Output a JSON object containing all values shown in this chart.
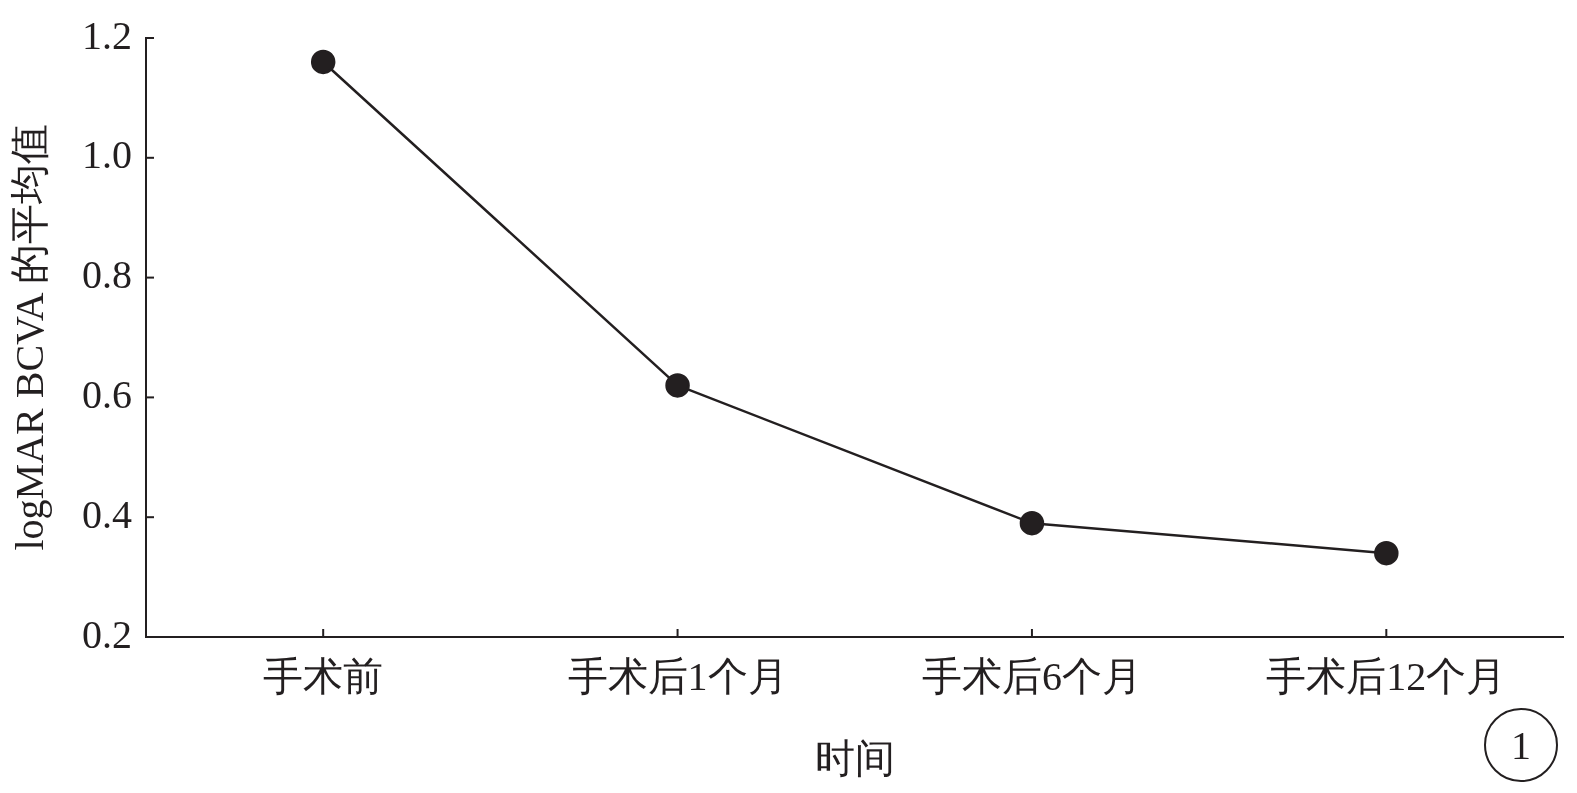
{
  "chart_data": {
    "type": "line",
    "xlabel": "时间",
    "ylabel": "logMAR BCVA 的平均值",
    "categories": [
      "手术前",
      "手术后1个月",
      "手术后6个月",
      "手术后12个月"
    ],
    "series": [
      {
        "color": "#231f20",
        "values": [
          1.16,
          0.62,
          0.39,
          0.34
        ]
      }
    ],
    "ylim": [
      0.2,
      1.2
    ],
    "yticks": [
      {
        "value": 0.2,
        "label": "0.2"
      },
      {
        "value": 0.4,
        "label": "0.4"
      },
      {
        "value": 0.6,
        "label": "0.6"
      },
      {
        "value": 0.8,
        "label": "0.8"
      },
      {
        "value": 1.0,
        "label": "1.0"
      },
      {
        "value": 1.2,
        "label": "1.2"
      }
    ],
    "grid": false,
    "legend": false,
    "marker": "circle",
    "line_style": "solid",
    "annotations": [
      "1"
    ]
  }
}
